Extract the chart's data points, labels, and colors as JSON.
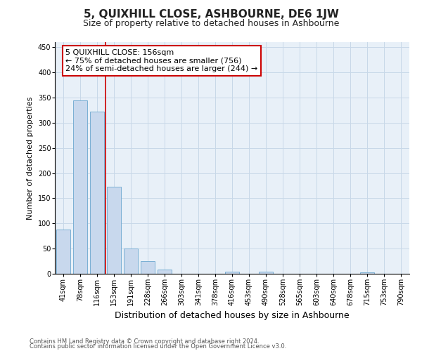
{
  "title": "5, QUIXHILL CLOSE, ASHBOURNE, DE6 1JW",
  "subtitle": "Size of property relative to detached houses in Ashbourne",
  "xlabel": "Distribution of detached houses by size in Ashbourne",
  "ylabel": "Number of detached properties",
  "categories": [
    "41sqm",
    "78sqm",
    "116sqm",
    "153sqm",
    "191sqm",
    "228sqm",
    "266sqm",
    "303sqm",
    "341sqm",
    "378sqm",
    "416sqm",
    "453sqm",
    "490sqm",
    "528sqm",
    "565sqm",
    "603sqm",
    "640sqm",
    "678sqm",
    "715sqm",
    "753sqm",
    "790sqm"
  ],
  "values": [
    88,
    345,
    322,
    173,
    50,
    25,
    8,
    0,
    0,
    0,
    4,
    0,
    4,
    0,
    0,
    0,
    0,
    0,
    3,
    0,
    0
  ],
  "bar_color": "#c8d8ed",
  "bar_edge_color": "#7aafd4",
  "vline_color": "#cc0000",
  "vline_index": 3,
  "annotation_text": "5 QUIXHILL CLOSE: 156sqm\n← 75% of detached houses are smaller (756)\n24% of semi-detached houses are larger (244) →",
  "annotation_box_facecolor": "#ffffff",
  "annotation_box_edgecolor": "#cc0000",
  "ylim": [
    0,
    460
  ],
  "yticks": [
    0,
    50,
    100,
    150,
    200,
    250,
    300,
    350,
    400,
    450
  ],
  "grid_color": "#c8d8e8",
  "background_color": "#e8f0f8",
  "footer_line1": "Contains HM Land Registry data © Crown copyright and database right 2024.",
  "footer_line2": "Contains public sector information licensed under the Open Government Licence v3.0.",
  "title_fontsize": 11,
  "subtitle_fontsize": 9,
  "xlabel_fontsize": 9,
  "ylabel_fontsize": 8,
  "tick_fontsize": 7,
  "footer_fontsize": 6,
  "annotation_fontsize": 8
}
